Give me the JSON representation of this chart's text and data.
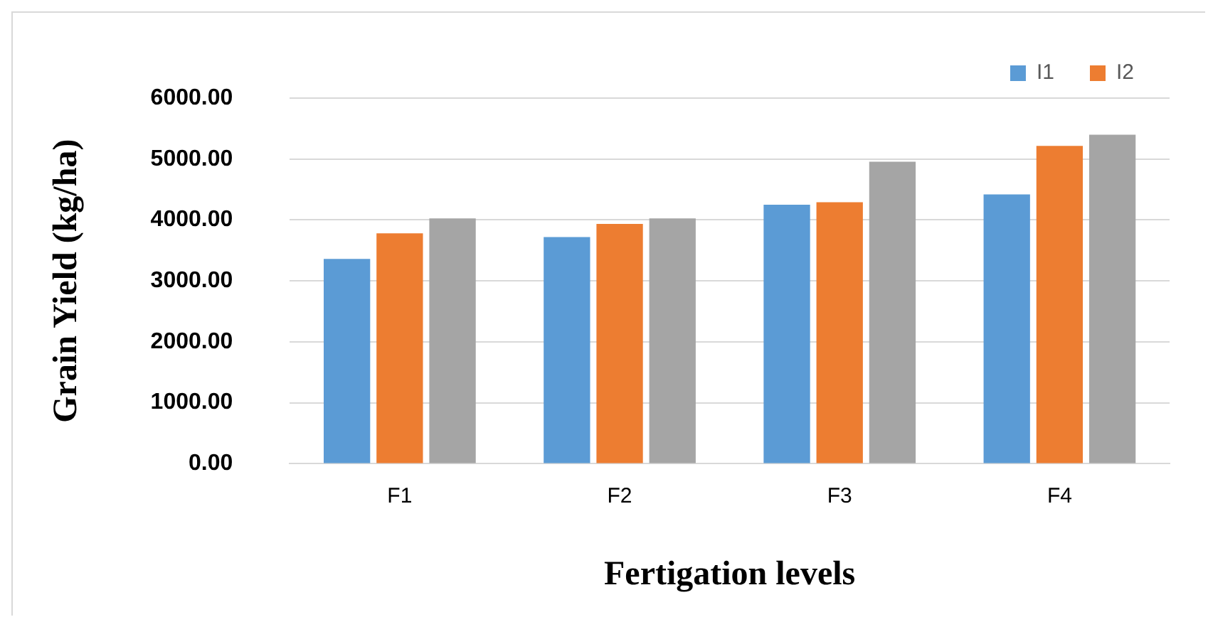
{
  "chart_data": {
    "type": "bar",
    "xlabel": "Fertigation levels",
    "ylabel": "Grain Yield (kg/ha)",
    "categories": [
      "F1",
      "F2",
      "F3",
      "F4"
    ],
    "series": [
      {
        "name": "I1",
        "color": "#5b9bd5",
        "values": [
          3360,
          3720,
          4250,
          4420
        ]
      },
      {
        "name": "I2",
        "color": "#ed7d31",
        "values": [
          3780,
          3935,
          4290,
          5215
        ]
      },
      {
        "color": "#a5a5a5",
        "values": [
          4025,
          4025,
          4955,
          5400
        ]
      }
    ],
    "ylim": [
      0,
      6000
    ],
    "yticks": [
      {
        "value": 0,
        "label": "0.00"
      },
      {
        "value": 1000,
        "label": "1000.00"
      },
      {
        "value": 2000,
        "label": "2000.00"
      },
      {
        "value": 3000,
        "label": "3000.00"
      },
      {
        "value": 4000,
        "label": "4000.00"
      },
      {
        "value": 5000,
        "label": "5000.00"
      },
      {
        "value": 6000,
        "label": "6000.00"
      }
    ],
    "grid": "y",
    "legend": "top right"
  }
}
